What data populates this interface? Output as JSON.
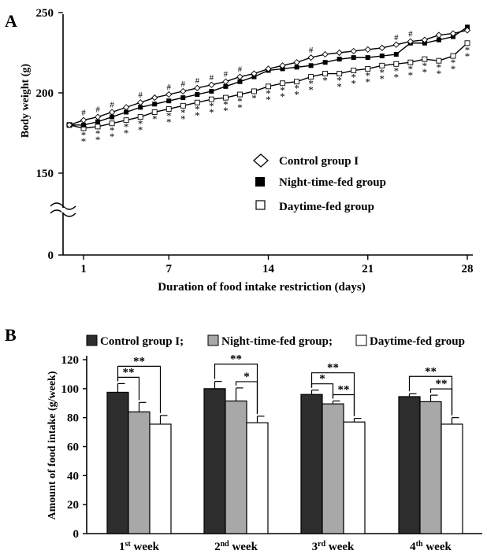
{
  "chart_data": [
    {
      "panel": "A",
      "type": "line",
      "ylabel": "Body weight (g)",
      "xlabel": "Duration of food intake restriction (days)",
      "yticks": [
        "0",
        "150",
        "200",
        "250"
      ],
      "xticks": [
        "1",
        "7",
        "14",
        "21",
        "28"
      ],
      "ylim": [
        150,
        250
      ],
      "xlim": [
        0,
        28
      ],
      "axis_break": true,
      "legend_position": "middle-right",
      "x": [
        0,
        1,
        2,
        3,
        4,
        5,
        6,
        7,
        8,
        9,
        10,
        11,
        12,
        13,
        14,
        15,
        16,
        17,
        18,
        19,
        20,
        21,
        22,
        23,
        24,
        25,
        26,
        27,
        28
      ],
      "series": [
        {
          "name": "Control group I",
          "marker": "diamond",
          "values": [
            180,
            183,
            185,
            188,
            191,
            194,
            197,
            199,
            201,
            203,
            205,
            207,
            210,
            212,
            215,
            217,
            219,
            222,
            224,
            225,
            226,
            227,
            228,
            230,
            232,
            233,
            236,
            237,
            239
          ]
        },
        {
          "name": "Night-time-fed group",
          "marker": "filled-square",
          "values": [
            180,
            180,
            182,
            185,
            188,
            191,
            193,
            195,
            197,
            199,
            201,
            204,
            207,
            210,
            214,
            215,
            216,
            217,
            219,
            221,
            222,
            222,
            223,
            224,
            231,
            231,
            233,
            235,
            241
          ]
        },
        {
          "name": "Daytime-fed group",
          "marker": "open-square",
          "values": [
            180,
            178,
            179,
            181,
            183,
            185,
            188,
            190,
            192,
            194,
            196,
            197,
            199,
            201,
            204,
            206,
            207,
            210,
            212,
            212,
            214,
            215,
            217,
            218,
            219,
            221,
            220,
            223,
            231
          ]
        }
      ],
      "hash_marks_days": [
        1,
        2,
        3,
        5,
        7,
        8,
        9,
        10,
        11,
        12,
        17,
        23,
        24
      ],
      "star_marks": [
        {
          "day": 1,
          "label": "**"
        },
        {
          "day": 2,
          "label": "**"
        },
        {
          "day": 3,
          "label": "**"
        },
        {
          "day": 4,
          "label": "**"
        },
        {
          "day": 5,
          "label": "**"
        },
        {
          "day": 6,
          "label": "*"
        },
        {
          "day": 7,
          "label": "**"
        },
        {
          "day": 8,
          "label": "**"
        },
        {
          "day": 9,
          "label": "**"
        },
        {
          "day": 10,
          "label": "**"
        },
        {
          "day": 11,
          "label": "**"
        },
        {
          "day": 12,
          "label": "**"
        },
        {
          "day": 13,
          "label": "*"
        },
        {
          "day": 14,
          "label": "**"
        },
        {
          "day": 15,
          "label": "**"
        },
        {
          "day": 16,
          "label": "**"
        },
        {
          "day": 17,
          "label": "**"
        },
        {
          "day": 18,
          "label": "*"
        },
        {
          "day": 19,
          "label": "**"
        },
        {
          "day": 20,
          "label": "**"
        },
        {
          "day": 21,
          "label": "**"
        },
        {
          "day": 22,
          "label": "**"
        },
        {
          "day": 23,
          "label": "**"
        },
        {
          "day": 24,
          "label": "**"
        },
        {
          "day": 25,
          "label": "**"
        },
        {
          "day": 26,
          "label": "**"
        },
        {
          "day": 27,
          "label": "**"
        },
        {
          "day": 28,
          "label": "**"
        }
      ]
    },
    {
      "panel": "B",
      "type": "bar",
      "ylabel": "Amount of food intake (g/week)",
      "yticks": [
        "0",
        "20",
        "40",
        "60",
        "80",
        "100",
        "120"
      ],
      "ylim": [
        0,
        120
      ],
      "categories": [
        {
          "main": "1",
          "sup": "st",
          "rest": " week"
        },
        {
          "main": "2",
          "sup": "nd",
          "rest": " week"
        },
        {
          "main": "3",
          "sup": "rd",
          "rest": " week"
        },
        {
          "main": "4",
          "sup": "th",
          "rest": " week"
        }
      ],
      "legend_position": "top",
      "series": [
        {
          "name": "Control group I;",
          "color": "#2d2d2d",
          "values": [
            97.5,
            100,
            96,
            94.5
          ],
          "errors": [
            6,
            5,
            3,
            2
          ]
        },
        {
          "name": "Night-time-fed group;",
          "color": "#a8a8a8",
          "values": [
            84,
            91.5,
            89.5,
            91
          ],
          "errors": [
            6.5,
            9,
            2,
            4.5
          ]
        },
        {
          "name": "Daytime-fed group",
          "color": "#ffffff",
          "values": [
            75.5,
            76.5,
            77,
            75.5
          ],
          "errors": [
            6,
            4.5,
            2.5,
            4.5
          ]
        }
      ],
      "brackets": [
        {
          "group": 0,
          "from": 0,
          "to": 2,
          "label": "**"
        },
        {
          "group": 0,
          "from": 0,
          "to": 1,
          "label": "**"
        },
        {
          "group": 1,
          "from": 0,
          "to": 2,
          "label": "**"
        },
        {
          "group": 1,
          "from": 1,
          "to": 2,
          "label": "*"
        },
        {
          "group": 2,
          "from": 0,
          "to": 2,
          "label": "**"
        },
        {
          "group": 2,
          "from": 0,
          "to": 1,
          "label": "*"
        },
        {
          "group": 2,
          "from": 1,
          "to": 2,
          "label": "**"
        },
        {
          "group": 3,
          "from": 0,
          "to": 2,
          "label": "**"
        },
        {
          "group": 3,
          "from": 1,
          "to": 2,
          "label": "**"
        }
      ]
    }
  ]
}
